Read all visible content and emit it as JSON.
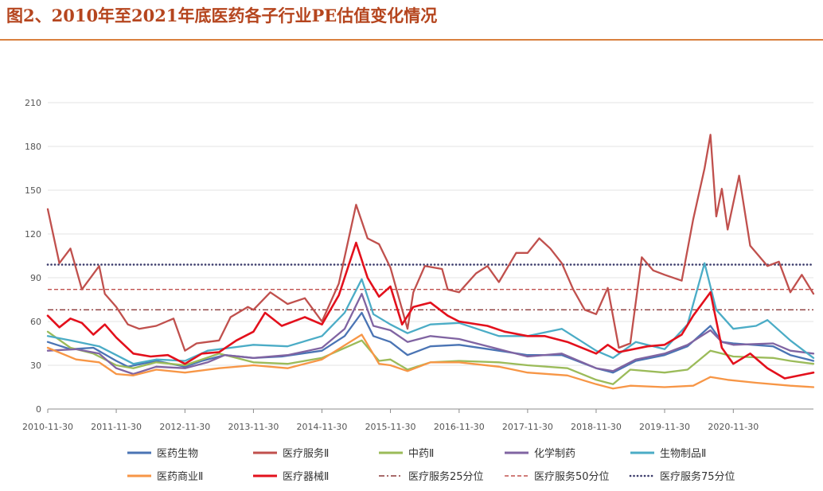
{
  "figure": {
    "title": "图2、2010年至2021年底医药各子行业PE估值变化情况"
  },
  "chart_data": {
    "type": "line",
    "title": "",
    "xlabel": "",
    "ylabel": "",
    "ylim": [
      0,
      210
    ],
    "yticks": [
      0,
      30,
      60,
      90,
      120,
      150,
      180,
      210
    ],
    "xlim": [
      "2010-11-30",
      "2022-01-31"
    ],
    "xticks": [
      "2010-11-30",
      "2011-11-30",
      "2012-11-30",
      "2013-11-30",
      "2014-11-30",
      "2015-11-30",
      "2016-11-30",
      "2017-11-30",
      "2018-11-30",
      "2019-11-30",
      "2020-11-30"
    ],
    "legend_position": "bottom",
    "series": [
      {
        "name": "医药生物",
        "color": "#4a74b4",
        "style": "solid",
        "points": [
          [
            "2010-11-30",
            46
          ],
          [
            "2011-03-31",
            41
          ],
          [
            "2011-07-31",
            42
          ],
          [
            "2011-11-30",
            33
          ],
          [
            "2012-01-31",
            29
          ],
          [
            "2012-06-30",
            33
          ],
          [
            "2012-11-30",
            29
          ],
          [
            "2013-02-28",
            33
          ],
          [
            "2013-06-30",
            37
          ],
          [
            "2013-11-30",
            35
          ],
          [
            "2014-04-30",
            36
          ],
          [
            "2014-11-30",
            40
          ],
          [
            "2015-03-31",
            50
          ],
          [
            "2015-06-30",
            66
          ],
          [
            "2015-08-31",
            50
          ],
          [
            "2015-11-30",
            46
          ],
          [
            "2016-02-29",
            37
          ],
          [
            "2016-06-30",
            43
          ],
          [
            "2016-11-30",
            44
          ],
          [
            "2017-06-30",
            40
          ],
          [
            "2017-11-30",
            37
          ],
          [
            "2018-05-31",
            37
          ],
          [
            "2018-11-30",
            28
          ],
          [
            "2019-02-28",
            25
          ],
          [
            "2019-06-30",
            33
          ],
          [
            "2019-11-30",
            37
          ],
          [
            "2020-03-31",
            43
          ],
          [
            "2020-07-31",
            57
          ],
          [
            "2020-09-30",
            46
          ],
          [
            "2020-11-30",
            45
          ],
          [
            "2021-06-30",
            43
          ],
          [
            "2021-09-30",
            37
          ],
          [
            "2022-01-31",
            33
          ]
        ]
      },
      {
        "name": "医疗服务Ⅱ",
        "color": "#c0504d",
        "style": "solid",
        "points": [
          [
            "2010-11-30",
            137
          ],
          [
            "2011-01-31",
            100
          ],
          [
            "2011-03-31",
            110
          ],
          [
            "2011-05-31",
            82
          ],
          [
            "2011-08-31",
            98
          ],
          [
            "2011-09-30",
            79
          ],
          [
            "2011-11-30",
            70
          ],
          [
            "2012-01-31",
            58
          ],
          [
            "2012-03-31",
            55
          ],
          [
            "2012-06-30",
            57
          ],
          [
            "2012-09-30",
            62
          ],
          [
            "2012-11-30",
            40
          ],
          [
            "2013-01-31",
            45
          ],
          [
            "2013-05-31",
            47
          ],
          [
            "2013-07-31",
            63
          ],
          [
            "2013-10-31",
            70
          ],
          [
            "2013-11-30",
            68
          ],
          [
            "2014-02-28",
            80
          ],
          [
            "2014-05-31",
            72
          ],
          [
            "2014-08-31",
            76
          ],
          [
            "2014-11-30",
            60
          ],
          [
            "2015-02-28",
            86
          ],
          [
            "2015-05-31",
            140
          ],
          [
            "2015-07-31",
            117
          ],
          [
            "2015-09-30",
            113
          ],
          [
            "2015-11-30",
            97
          ],
          [
            "2016-02-29",
            55
          ],
          [
            "2016-03-31",
            80
          ],
          [
            "2016-05-31",
            98
          ],
          [
            "2016-08-31",
            96
          ],
          [
            "2016-09-30",
            82
          ],
          [
            "2016-11-30",
            80
          ],
          [
            "2017-02-28",
            93
          ],
          [
            "2017-04-30",
            98
          ],
          [
            "2017-06-30",
            87
          ],
          [
            "2017-09-30",
            107
          ],
          [
            "2017-11-30",
            107
          ],
          [
            "2018-01-31",
            117
          ],
          [
            "2018-03-31",
            110
          ],
          [
            "2018-05-31",
            100
          ],
          [
            "2018-07-31",
            82
          ],
          [
            "2018-09-30",
            68
          ],
          [
            "2018-11-30",
            65
          ],
          [
            "2019-01-31",
            83
          ],
          [
            "2019-03-31",
            42
          ],
          [
            "2019-05-31",
            45
          ],
          [
            "2019-07-31",
            104
          ],
          [
            "2019-09-30",
            95
          ],
          [
            "2019-11-30",
            92
          ],
          [
            "2020-02-29",
            88
          ],
          [
            "2020-04-30",
            130
          ],
          [
            "2020-06-30",
            165
          ],
          [
            "2020-07-31",
            188
          ],
          [
            "2020-08-31",
            132
          ],
          [
            "2020-09-30",
            151
          ],
          [
            "2020-10-31",
            123
          ],
          [
            "2020-12-31",
            160
          ],
          [
            "2021-02-28",
            112
          ],
          [
            "2021-05-31",
            98
          ],
          [
            "2021-07-31",
            101
          ],
          [
            "2021-09-30",
            80
          ],
          [
            "2021-11-30",
            92
          ],
          [
            "2022-01-31",
            79
          ]
        ]
      },
      {
        "name": "中药Ⅱ",
        "color": "#9bbb59",
        "style": "solid",
        "points": [
          [
            "2010-11-30",
            53
          ],
          [
            "2011-03-31",
            42
          ],
          [
            "2011-07-31",
            38
          ],
          [
            "2011-11-30",
            30
          ],
          [
            "2012-02-29",
            28
          ],
          [
            "2012-06-30",
            32
          ],
          [
            "2012-11-30",
            30
          ],
          [
            "2013-05-31",
            38
          ],
          [
            "2013-11-30",
            32
          ],
          [
            "2014-05-31",
            31
          ],
          [
            "2014-11-30",
            35
          ],
          [
            "2015-06-30",
            47
          ],
          [
            "2015-09-30",
            33
          ],
          [
            "2015-11-30",
            34
          ],
          [
            "2016-02-29",
            27
          ],
          [
            "2016-06-30",
            32
          ],
          [
            "2016-11-30",
            33
          ],
          [
            "2017-06-30",
            32
          ],
          [
            "2017-11-30",
            30
          ],
          [
            "2018-06-30",
            28
          ],
          [
            "2018-11-30",
            20
          ],
          [
            "2019-02-28",
            17
          ],
          [
            "2019-05-31",
            27
          ],
          [
            "2019-11-30",
            25
          ],
          [
            "2020-03-31",
            27
          ],
          [
            "2020-07-31",
            40
          ],
          [
            "2020-09-30",
            38
          ],
          [
            "2020-11-30",
            36
          ],
          [
            "2021-06-30",
            35
          ],
          [
            "2021-09-30",
            33
          ],
          [
            "2022-01-31",
            31
          ]
        ]
      },
      {
        "name": "化学制药",
        "color": "#8064a2",
        "style": "solid",
        "points": [
          [
            "2010-11-30",
            40
          ],
          [
            "2011-04-30",
            41
          ],
          [
            "2011-08-31",
            38
          ],
          [
            "2011-11-30",
            28
          ],
          [
            "2012-02-29",
            24
          ],
          [
            "2012-06-30",
            29
          ],
          [
            "2012-11-30",
            28
          ],
          [
            "2013-03-31",
            32
          ],
          [
            "2013-06-30",
            37
          ],
          [
            "2013-11-30",
            35
          ],
          [
            "2014-05-31",
            37
          ],
          [
            "2014-11-30",
            42
          ],
          [
            "2015-03-31",
            55
          ],
          [
            "2015-06-30",
            79
          ],
          [
            "2015-08-31",
            57
          ],
          [
            "2015-11-30",
            54
          ],
          [
            "2016-02-29",
            46
          ],
          [
            "2016-06-30",
            50
          ],
          [
            "2016-11-30",
            48
          ],
          [
            "2017-06-30",
            41
          ],
          [
            "2017-11-30",
            36
          ],
          [
            "2018-05-31",
            38
          ],
          [
            "2018-11-30",
            28
          ],
          [
            "2019-02-28",
            26
          ],
          [
            "2019-06-30",
            34
          ],
          [
            "2019-11-30",
            38
          ],
          [
            "2020-03-31",
            44
          ],
          [
            "2020-07-31",
            54
          ],
          [
            "2020-09-30",
            46
          ],
          [
            "2020-11-30",
            44
          ],
          [
            "2021-06-30",
            45
          ],
          [
            "2021-09-30",
            40
          ],
          [
            "2022-01-31",
            38
          ]
        ]
      },
      {
        "name": "生物制品Ⅱ",
        "color": "#4bacc6",
        "style": "solid",
        "points": [
          [
            "2010-11-30",
            50
          ],
          [
            "2011-03-31",
            47
          ],
          [
            "2011-08-31",
            43
          ],
          [
            "2011-11-30",
            37
          ],
          [
            "2012-02-29",
            31
          ],
          [
            "2012-06-30",
            34
          ],
          [
            "2012-11-30",
            33
          ],
          [
            "2013-03-31",
            40
          ],
          [
            "2013-07-31",
            42
          ],
          [
            "2013-11-30",
            44
          ],
          [
            "2014-05-31",
            43
          ],
          [
            "2014-11-30",
            50
          ],
          [
            "2015-03-31",
            66
          ],
          [
            "2015-06-30",
            89
          ],
          [
            "2015-08-31",
            65
          ],
          [
            "2015-11-30",
            58
          ],
          [
            "2016-02-29",
            52
          ],
          [
            "2016-06-30",
            58
          ],
          [
            "2016-11-30",
            59
          ],
          [
            "2017-06-30",
            50
          ],
          [
            "2017-11-30",
            50
          ],
          [
            "2018-05-31",
            55
          ],
          [
            "2018-11-30",
            40
          ],
          [
            "2019-02-28",
            35
          ],
          [
            "2019-06-30",
            46
          ],
          [
            "2019-11-30",
            41
          ],
          [
            "2020-03-31",
            58
          ],
          [
            "2020-06-30",
            100
          ],
          [
            "2020-08-31",
            68
          ],
          [
            "2020-11-30",
            55
          ],
          [
            "2021-03-31",
            57
          ],
          [
            "2021-05-31",
            61
          ],
          [
            "2021-09-30",
            47
          ],
          [
            "2022-01-31",
            35
          ]
        ]
      },
      {
        "name": "医药商业Ⅱ",
        "color": "#f79646",
        "style": "solid",
        "points": [
          [
            "2010-11-30",
            42
          ],
          [
            "2011-04-30",
            34
          ],
          [
            "2011-08-31",
            32
          ],
          [
            "2011-11-30",
            24
          ],
          [
            "2012-02-29",
            23
          ],
          [
            "2012-06-30",
            27
          ],
          [
            "2012-11-30",
            25
          ],
          [
            "2013-05-31",
            28
          ],
          [
            "2013-11-30",
            30
          ],
          [
            "2014-05-31",
            28
          ],
          [
            "2014-11-30",
            34
          ],
          [
            "2015-06-30",
            51
          ],
          [
            "2015-09-30",
            31
          ],
          [
            "2015-11-30",
            30
          ],
          [
            "2016-02-29",
            26
          ],
          [
            "2016-06-30",
            32
          ],
          [
            "2016-11-30",
            32
          ],
          [
            "2017-06-30",
            29
          ],
          [
            "2017-11-30",
            25
          ],
          [
            "2018-06-30",
            23
          ],
          [
            "2018-11-30",
            17
          ],
          [
            "2019-02-28",
            14
          ],
          [
            "2019-05-31",
            16
          ],
          [
            "2019-11-30",
            15
          ],
          [
            "2020-04-30",
            16
          ],
          [
            "2020-07-31",
            22
          ],
          [
            "2020-10-31",
            20
          ],
          [
            "2021-03-31",
            18
          ],
          [
            "2021-09-30",
            16
          ],
          [
            "2022-01-31",
            15
          ]
        ]
      },
      {
        "name": "医疗器械Ⅱ",
        "color": "#e3101c",
        "style": "solid",
        "points": [
          [
            "2010-11-30",
            64
          ],
          [
            "2011-01-31",
            56
          ],
          [
            "2011-03-31",
            62
          ],
          [
            "2011-05-31",
            59
          ],
          [
            "2011-07-31",
            51
          ],
          [
            "2011-09-30",
            58
          ],
          [
            "2011-11-30",
            49
          ],
          [
            "2012-02-29",
            38
          ],
          [
            "2012-05-31",
            36
          ],
          [
            "2012-08-31",
            37
          ],
          [
            "2012-11-30",
            31
          ],
          [
            "2013-02-28",
            38
          ],
          [
            "2013-05-31",
            39
          ],
          [
            "2013-08-31",
            47
          ],
          [
            "2013-11-30",
            53
          ],
          [
            "2014-01-31",
            66
          ],
          [
            "2014-04-30",
            57
          ],
          [
            "2014-08-31",
            63
          ],
          [
            "2014-11-30",
            58
          ],
          [
            "2015-02-28",
            78
          ],
          [
            "2015-05-31",
            114
          ],
          [
            "2015-07-31",
            90
          ],
          [
            "2015-09-30",
            77
          ],
          [
            "2015-11-30",
            84
          ],
          [
            "2016-01-31",
            58
          ],
          [
            "2016-03-31",
            70
          ],
          [
            "2016-06-30",
            73
          ],
          [
            "2016-09-30",
            64
          ],
          [
            "2016-11-30",
            60
          ],
          [
            "2017-04-30",
            57
          ],
          [
            "2017-07-31",
            53
          ],
          [
            "2017-11-30",
            50
          ],
          [
            "2018-02-28",
            50
          ],
          [
            "2018-06-30",
            46
          ],
          [
            "2018-11-30",
            38
          ],
          [
            "2019-01-31",
            44
          ],
          [
            "2019-03-31",
            39
          ],
          [
            "2019-08-31",
            43
          ],
          [
            "2019-11-30",
            44
          ],
          [
            "2020-02-29",
            51
          ],
          [
            "2020-04-30",
            64
          ],
          [
            "2020-07-31",
            80
          ],
          [
            "2020-09-30",
            42
          ],
          [
            "2020-11-30",
            31
          ],
          [
            "2021-02-28",
            38
          ],
          [
            "2021-05-31",
            28
          ],
          [
            "2021-08-31",
            21
          ],
          [
            "2022-01-31",
            25
          ]
        ]
      },
      {
        "name": "医疗服务25分位",
        "color": "#8b3a3a",
        "style": "dashdot",
        "value": 68
      },
      {
        "name": "医疗服务50分位",
        "color": "#c0504d",
        "style": "dashed",
        "value": 82
      },
      {
        "name": "医疗服务75分位",
        "color": "#3b3b6b",
        "style": "dotted",
        "value": 99
      }
    ]
  }
}
